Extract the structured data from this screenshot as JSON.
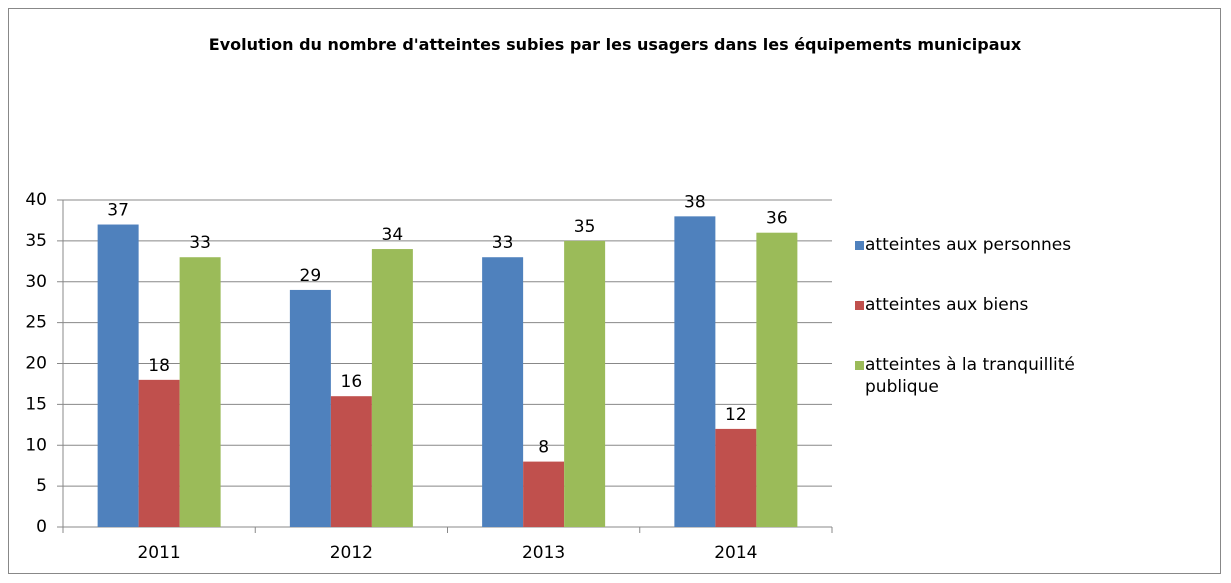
{
  "chart_data": {
    "type": "bar",
    "title": "Evolution du nombre d'atteintes subies par les usagers dans les équipements municipaux",
    "categories": [
      "2011",
      "2012",
      "2013",
      "2014"
    ],
    "series": [
      {
        "name": "atteintes aux personnes",
        "color": "#4f81bd",
        "values": [
          37,
          29,
          33,
          38
        ]
      },
      {
        "name": "atteintes aux biens",
        "color": "#c0504d",
        "values": [
          18,
          16,
          8,
          12
        ]
      },
      {
        "name": "atteintes à la tranquillité publique",
        "color": "#9bbb59",
        "values": [
          33,
          34,
          35,
          36
        ]
      }
    ],
    "ylim": [
      0,
      40
    ],
    "yticks": [
      0,
      5,
      10,
      15,
      20,
      25,
      30,
      35,
      40
    ],
    "grid": true,
    "legend": "right"
  }
}
